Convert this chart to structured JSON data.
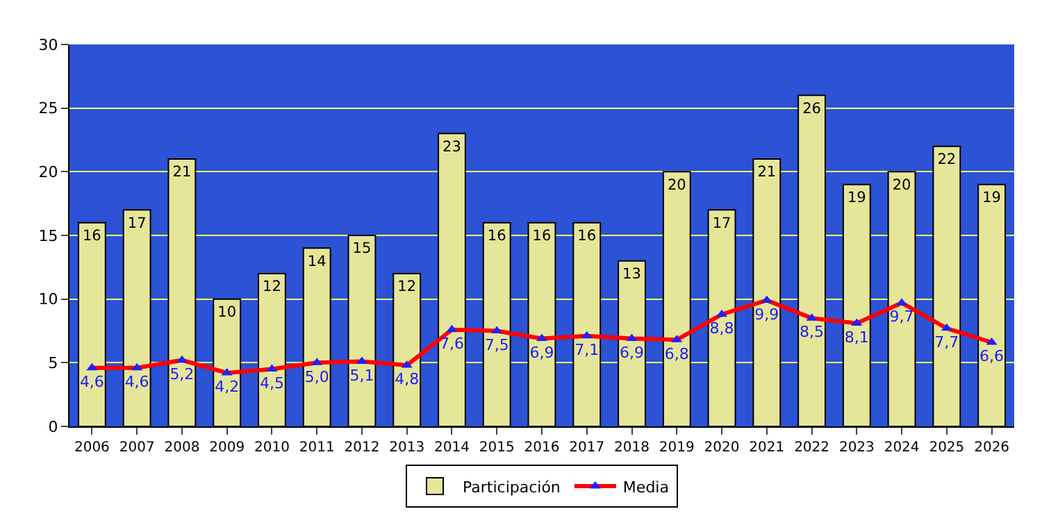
{
  "chart_data": {
    "type": "bar",
    "categories": [
      "2006",
      "2007",
      "2008",
      "2009",
      "2010",
      "2011",
      "2012",
      "2013",
      "2014",
      "2015",
      "2016",
      "2017",
      "2018",
      "2019",
      "2020",
      "2021",
      "2022",
      "2023",
      "2024",
      "2025",
      "2026"
    ],
    "ylim": [
      0,
      30
    ],
    "yticks": [
      0,
      5,
      10,
      15,
      20,
      25,
      30
    ],
    "grid": "y",
    "legend": "bottom",
    "series": [
      {
        "name": "Participación",
        "color": "#e6e69a",
        "values": [
          16,
          17,
          21,
          10,
          12,
          14,
          15,
          12,
          23,
          16,
          16,
          16,
          13,
          20,
          17,
          21,
          26,
          19,
          20,
          22,
          19
        ],
        "value_labels": [
          "16",
          "17",
          "21",
          "10",
          "12",
          "14",
          "15",
          "12",
          "23",
          "16",
          "16",
          "16",
          "13",
          "20",
          "17",
          "21",
          "26",
          "19",
          "20",
          "22",
          "19"
        ]
      },
      {
        "type": "line",
        "name": "Media",
        "color": "#ff0000",
        "marker": "triangle",
        "line_style": "solid",
        "values": [
          4.6,
          4.6,
          5.2,
          4.2,
          4.5,
          5.0,
          5.1,
          4.8,
          7.6,
          7.5,
          6.9,
          7.1,
          6.9,
          6.8,
          8.8,
          9.9,
          8.5,
          8.1,
          9.7,
          7.7,
          6.6
        ],
        "value_labels": [
          "4,6",
          "4,6",
          "5,2",
          "4,2",
          "4,5",
          "5,0",
          "5,1",
          "4,8",
          "7,6",
          "7,5",
          "6,9",
          "7,1",
          "6,9",
          "6,8",
          "8,8",
          "9,9",
          "8,5",
          "8,1",
          "9,7",
          "7,7",
          "6,6"
        ]
      }
    ]
  }
}
